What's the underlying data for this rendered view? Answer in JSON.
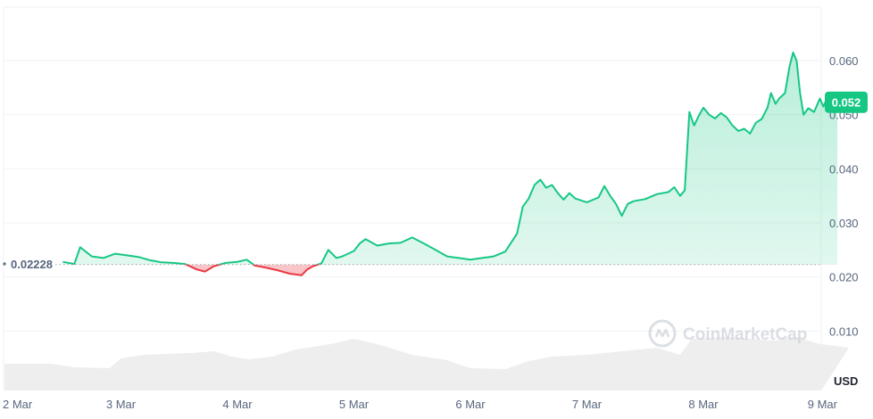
{
  "chart_data": {
    "type": "area",
    "title": "",
    "xlabel": "",
    "ylabel": "",
    "unit_label": "USD",
    "ylim": [
      0,
      0.07
    ],
    "yticks": [
      "0.010",
      "0.020",
      "0.030",
      "0.040",
      "0.050",
      "0.060"
    ],
    "ytick_values": [
      0.01,
      0.02,
      0.03,
      0.04,
      0.05,
      0.06
    ],
    "xticks": [
      "2 Mar",
      "3 Mar",
      "4 Mar",
      "5 Mar",
      "6 Mar",
      "7 Mar",
      "8 Mar",
      "9 Mar"
    ],
    "x_range_days": [
      0,
      7.25
    ],
    "baseline": {
      "value": 0.0223,
      "label": "0.02228"
    },
    "current_price": {
      "value": 0.0523,
      "label": "0.052"
    },
    "watermark": "CoinMarketCap",
    "grid": true,
    "colors": {
      "up": "#16c784",
      "down": "#ea3943",
      "baseline": "#9ca3af",
      "volume": "#eeeeee",
      "axis_text": "#58667e"
    },
    "series": [
      {
        "values": [
          [
            0.5,
            0.0228
          ],
          [
            0.6,
            0.0224
          ],
          [
            0.65,
            0.0255
          ],
          [
            0.75,
            0.0238
          ],
          [
            0.85,
            0.0235
          ],
          [
            0.95,
            0.0243
          ],
          [
            1.05,
            0.024
          ],
          [
            1.15,
            0.0237
          ],
          [
            1.25,
            0.0231
          ],
          [
            1.35,
            0.0227
          ],
          [
            1.45,
            0.0226
          ],
          [
            1.55,
            0.0224
          ],
          [
            1.65,
            0.0214
          ],
          [
            1.72,
            0.021
          ],
          [
            1.8,
            0.022
          ],
          [
            1.9,
            0.0226
          ],
          [
            2.0,
            0.0228
          ],
          [
            2.08,
            0.0232
          ],
          [
            2.15,
            0.0221
          ],
          [
            2.25,
            0.0217
          ],
          [
            2.35,
            0.0212
          ],
          [
            2.45,
            0.0206
          ],
          [
            2.55,
            0.0203
          ],
          [
            2.6,
            0.0214
          ],
          [
            2.65,
            0.022
          ],
          [
            2.72,
            0.0225
          ],
          [
            2.78,
            0.025
          ],
          [
            2.85,
            0.0235
          ],
          [
            2.9,
            0.0238
          ],
          [
            3.0,
            0.0248
          ],
          [
            3.05,
            0.0262
          ],
          [
            3.1,
            0.027
          ],
          [
            3.2,
            0.0258
          ],
          [
            3.3,
            0.0262
          ],
          [
            3.4,
            0.0263
          ],
          [
            3.5,
            0.0273
          ],
          [
            3.6,
            0.0262
          ],
          [
            3.7,
            0.025
          ],
          [
            3.8,
            0.0238
          ],
          [
            3.9,
            0.0235
          ],
          [
            4.0,
            0.0232
          ],
          [
            4.1,
            0.0235
          ],
          [
            4.2,
            0.0238
          ],
          [
            4.3,
            0.0247
          ],
          [
            4.4,
            0.028
          ],
          [
            4.45,
            0.033
          ],
          [
            4.5,
            0.0345
          ],
          [
            4.55,
            0.037
          ],
          [
            4.6,
            0.038
          ],
          [
            4.65,
            0.0365
          ],
          [
            4.7,
            0.037
          ],
          [
            4.75,
            0.0355
          ],
          [
            4.8,
            0.0343
          ],
          [
            4.85,
            0.0355
          ],
          [
            4.9,
            0.0345
          ],
          [
            5.0,
            0.0338
          ],
          [
            5.1,
            0.0347
          ],
          [
            5.15,
            0.0368
          ],
          [
            5.2,
            0.035
          ],
          [
            5.25,
            0.0335
          ],
          [
            5.3,
            0.0313
          ],
          [
            5.35,
            0.0335
          ],
          [
            5.4,
            0.034
          ],
          [
            5.5,
            0.0344
          ],
          [
            5.6,
            0.0353
          ],
          [
            5.7,
            0.0357
          ],
          [
            5.75,
            0.0366
          ],
          [
            5.8,
            0.035
          ],
          [
            5.84,
            0.036
          ],
          [
            5.88,
            0.0505
          ],
          [
            5.92,
            0.048
          ],
          [
            5.96,
            0.0498
          ],
          [
            6.0,
            0.0513
          ],
          [
            6.05,
            0.05
          ],
          [
            6.1,
            0.0493
          ],
          [
            6.15,
            0.0503
          ],
          [
            6.2,
            0.0495
          ],
          [
            6.25,
            0.048
          ],
          [
            6.3,
            0.047
          ],
          [
            6.35,
            0.0474
          ],
          [
            6.4,
            0.0465
          ],
          [
            6.45,
            0.0485
          ],
          [
            6.5,
            0.0492
          ],
          [
            6.55,
            0.0513
          ],
          [
            6.58,
            0.054
          ],
          [
            6.62,
            0.052
          ],
          [
            6.65,
            0.053
          ],
          [
            6.7,
            0.054
          ],
          [
            6.74,
            0.059
          ],
          [
            6.77,
            0.0615
          ],
          [
            6.8,
            0.06
          ],
          [
            6.83,
            0.054
          ],
          [
            6.86,
            0.05
          ],
          [
            6.9,
            0.0512
          ],
          [
            6.95,
            0.0505
          ],
          [
            7.0,
            0.053
          ],
          [
            7.03,
            0.0515
          ],
          [
            7.06,
            0.053
          ],
          [
            7.1,
            0.0535
          ],
          [
            7.15,
            0.0523
          ]
        ]
      }
    ]
  }
}
